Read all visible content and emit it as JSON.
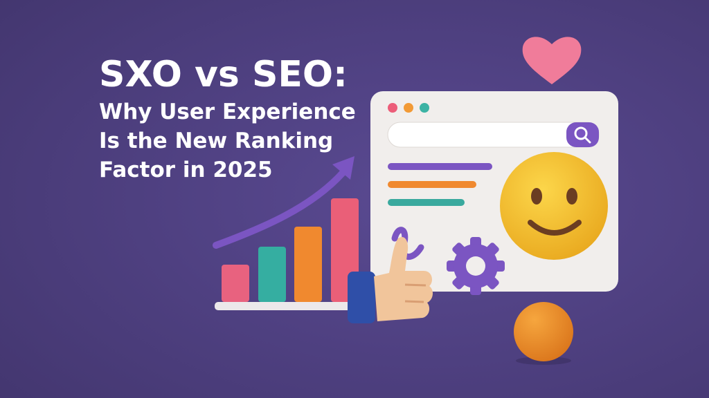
{
  "header": {
    "title": "SXO vs SEO:",
    "subtitle_lines": [
      "Why User Experience",
      "Is the New Ranking",
      "Factor in 2025"
    ]
  }
}
